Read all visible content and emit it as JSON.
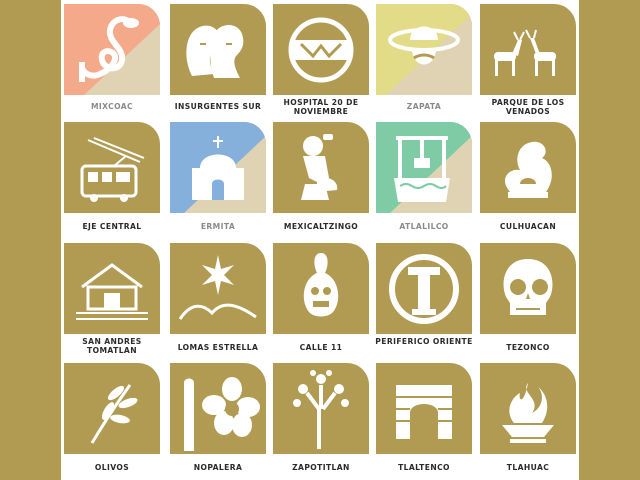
{
  "colors": {
    "gold": "#B19B52",
    "page_background": "#FFFFFF",
    "salmon": "#F3A98A",
    "sky_blue": "#86B0DC",
    "pale_yellow": "#E2DB87",
    "mint_green": "#7ECBA6",
    "beige": "#E0D3B4",
    "label_dark": "#2B2B2B",
    "label_light": "#8A8A8A"
  },
  "stations": [
    {
      "name": "MIXCOAC",
      "icon": "snake-icon",
      "accent": "salmon"
    },
    {
      "name": "INSURGENTES SUR",
      "icon": "two-heroes-profile-icon",
      "accent": "gold"
    },
    {
      "name": "HOSPITAL 20 DE NOVIEMBRE",
      "icon": "hospital-emblem-icon",
      "accent": "gold"
    },
    {
      "name": "ZAPATA",
      "icon": "zapata-sombrero-icon",
      "accent": "pale-yellow"
    },
    {
      "name": "PARQUE DE LOS VENADOS",
      "icon": "two-deer-icon",
      "accent": "gold"
    },
    {
      "name": "EJE CENTRAL",
      "icon": "trolleybus-icon",
      "accent": "gold"
    },
    {
      "name": "ERMITA",
      "icon": "hermitage-chapel-icon",
      "accent": "sky-blue"
    },
    {
      "name": "MEXICALTZINGO",
      "icon": "seated-deity-icon",
      "accent": "gold"
    },
    {
      "name": "ATLALILCO",
      "icon": "water-well-icon",
      "accent": "mint-green"
    },
    {
      "name": "CULHUACAN",
      "icon": "curved-hill-glyph-icon",
      "accent": "gold"
    },
    {
      "name": "SAN ANDRES TOMATLAN",
      "icon": "house-icon",
      "accent": "gold"
    },
    {
      "name": "LOMAS ESTRELLA",
      "icon": "star-over-hills-icon",
      "accent": "gold"
    },
    {
      "name": "CALLE 11",
      "icon": "clay-figure-icon",
      "accent": "gold"
    },
    {
      "name": "PERIFERICO ORIENTE",
      "icon": "ring-column-icon",
      "accent": "gold"
    },
    {
      "name": "TEZONCO",
      "icon": "sugar-skull-icon",
      "accent": "gold"
    },
    {
      "name": "OLIVOS",
      "icon": "olive-branch-icon",
      "accent": "gold"
    },
    {
      "name": "NOPALERA",
      "icon": "nopal-flower-icon",
      "accent": "gold"
    },
    {
      "name": "ZAPOTITLAN",
      "icon": "flowering-tree-icon",
      "accent": "gold"
    },
    {
      "name": "TLALTENCO",
      "icon": "stone-arch-icon",
      "accent": "gold"
    },
    {
      "name": "TLAHUAC",
      "icon": "fire-bowl-icon",
      "accent": "gold"
    }
  ]
}
